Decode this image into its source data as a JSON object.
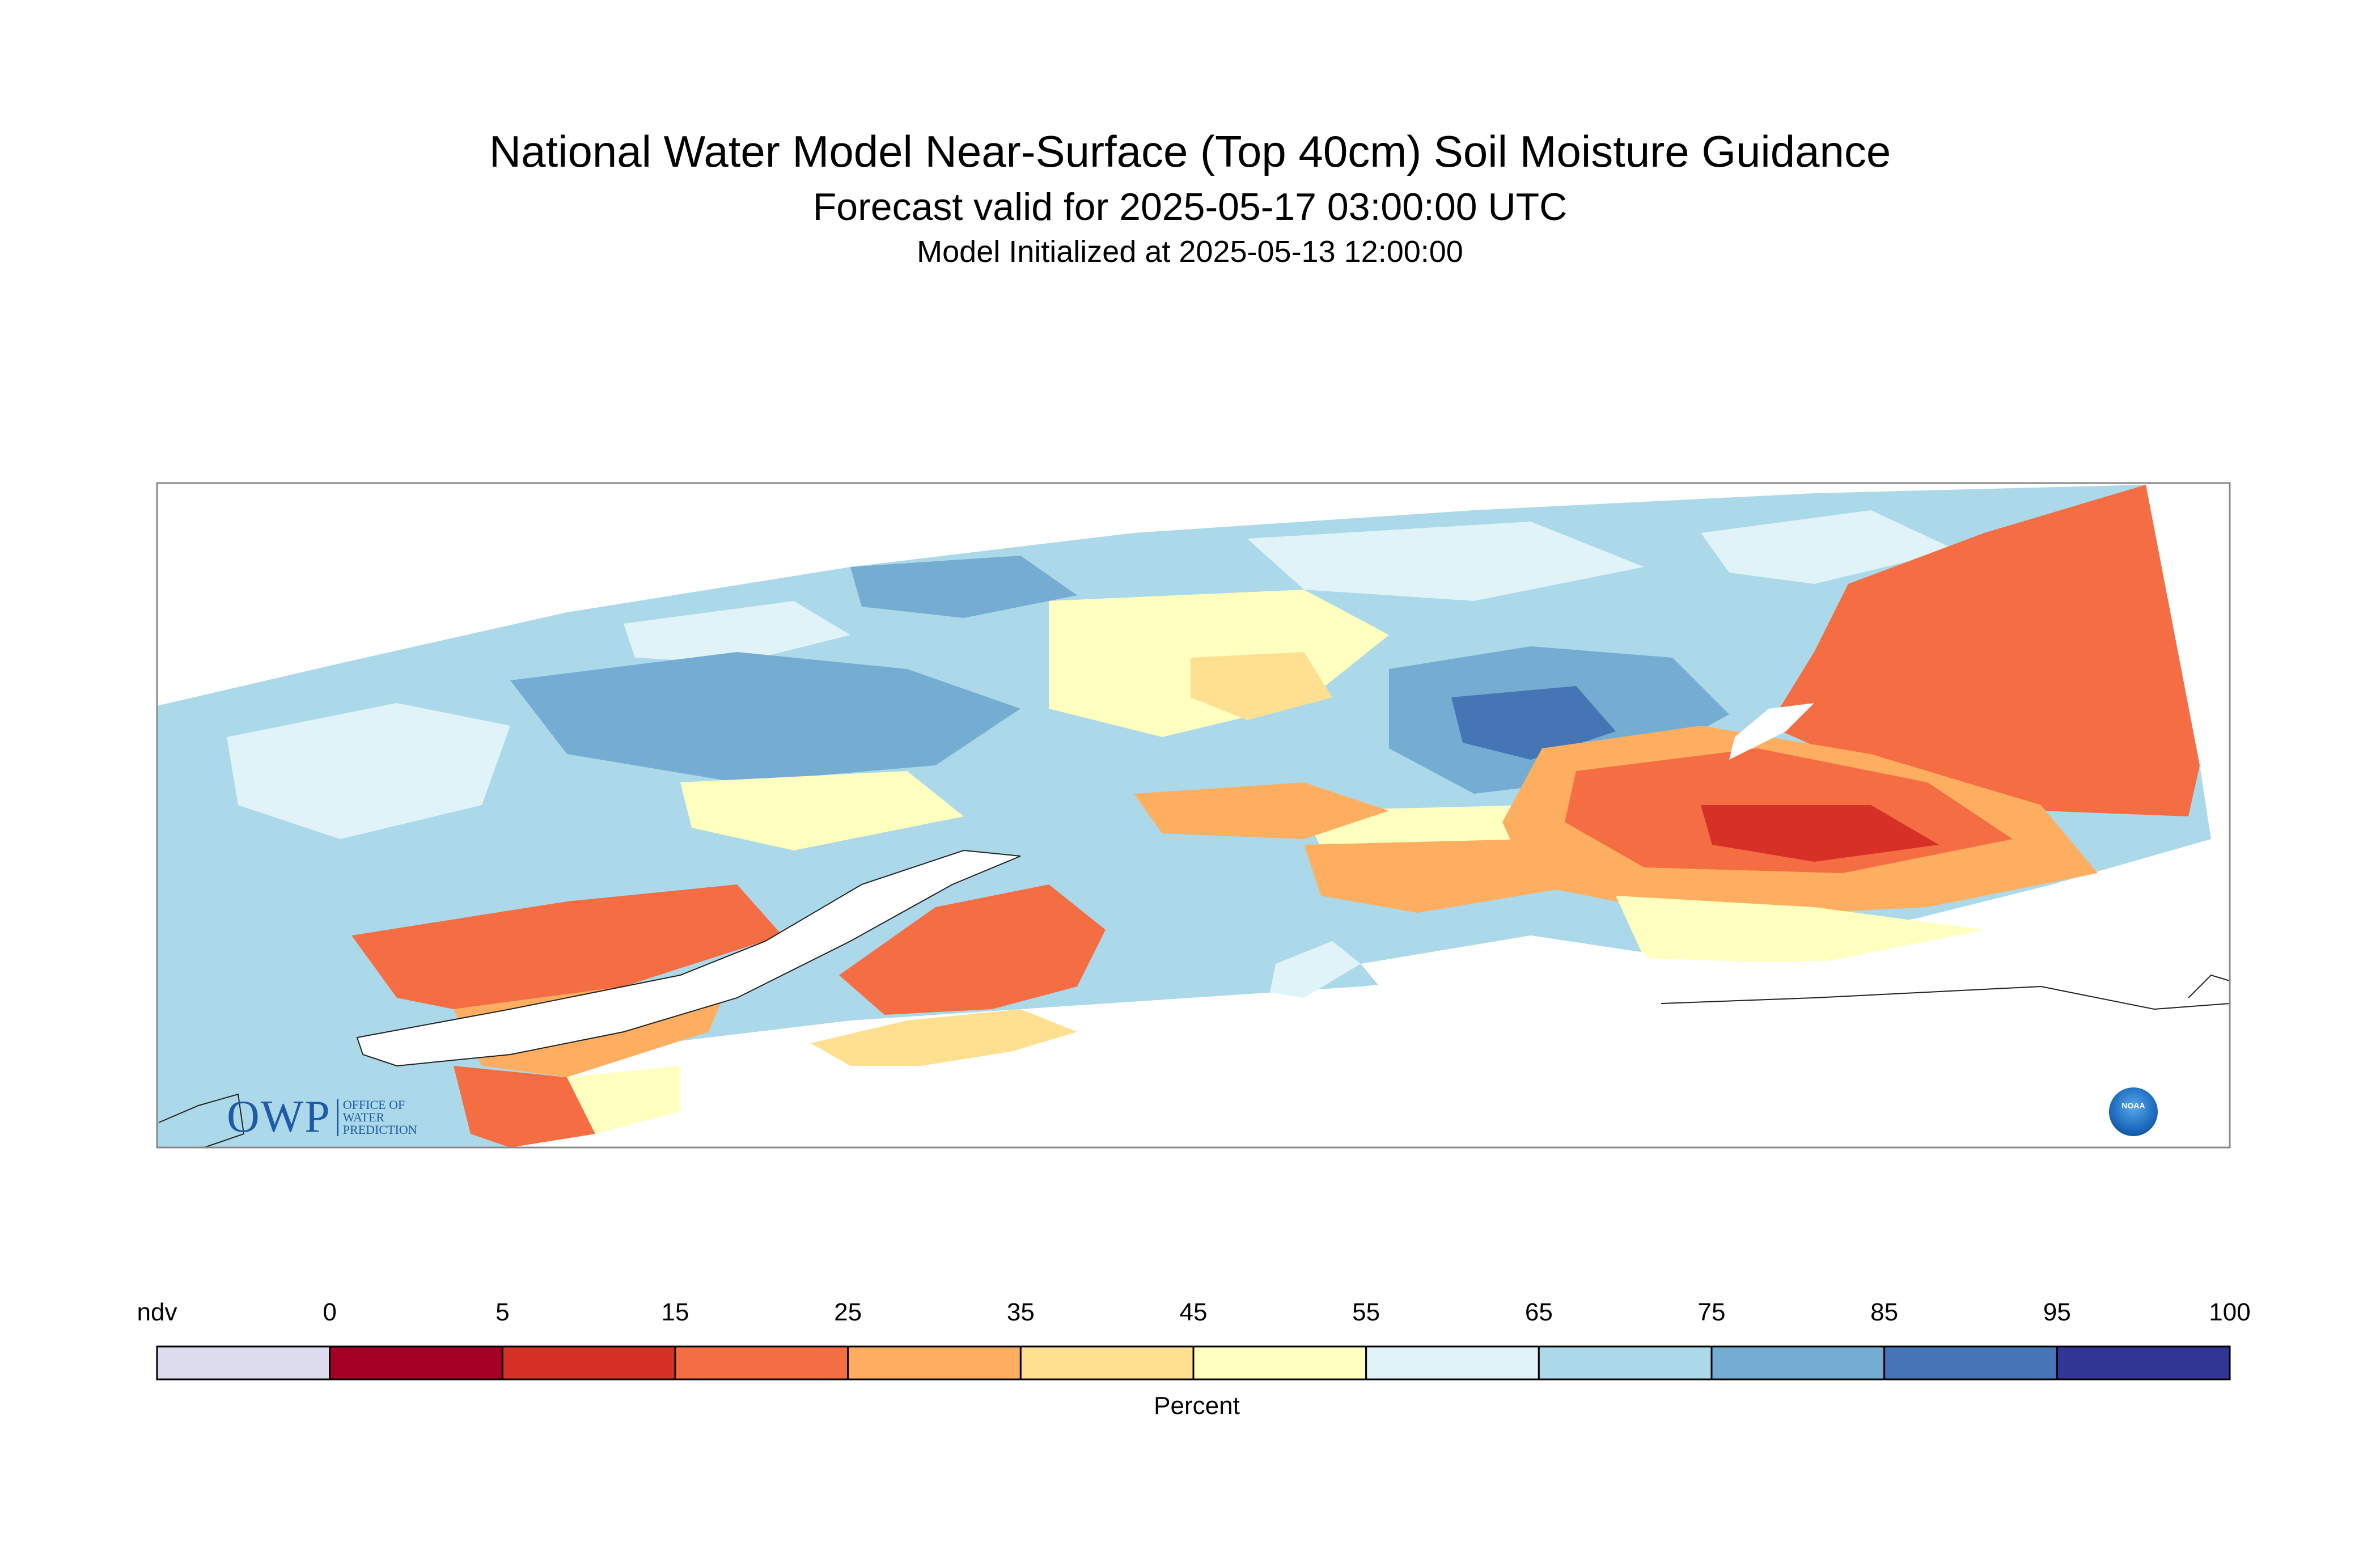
{
  "header": {
    "title": "National Water Model Near-Surface (Top 40cm) Soil Moisture Guidance",
    "subtitle": "Forecast valid for 2025-05-17 03:00:00 UTC",
    "init": "Model Initialized at 2025-05-13 12:00:00"
  },
  "logos": {
    "owp_text": "OWP",
    "owp_small": [
      "OFFICE OF",
      "WATER",
      "PREDICTION"
    ],
    "noaa_text": "NOAA"
  },
  "legend": {
    "title": "Percent",
    "ndv_label": "ndv",
    "ndv_color": "#dcdcee",
    "bins": [
      {
        "from": "0",
        "color": "#a50026"
      },
      {
        "from": "5",
        "color": "#d73027"
      },
      {
        "from": "15",
        "color": "#f46d43"
      },
      {
        "from": "25",
        "color": "#fdae61"
      },
      {
        "from": "35",
        "color": "#fee090"
      },
      {
        "from": "45",
        "color": "#ffffbf"
      },
      {
        "from": "55",
        "color": "#e0f3f8"
      },
      {
        "from": "65",
        "color": "#abd9e9"
      },
      {
        "from": "75",
        "color": "#74add1"
      },
      {
        "from": "85",
        "color": "#4575b4"
      },
      {
        "from": "95",
        "color": "#313695"
      }
    ],
    "max_label": "100"
  }
}
